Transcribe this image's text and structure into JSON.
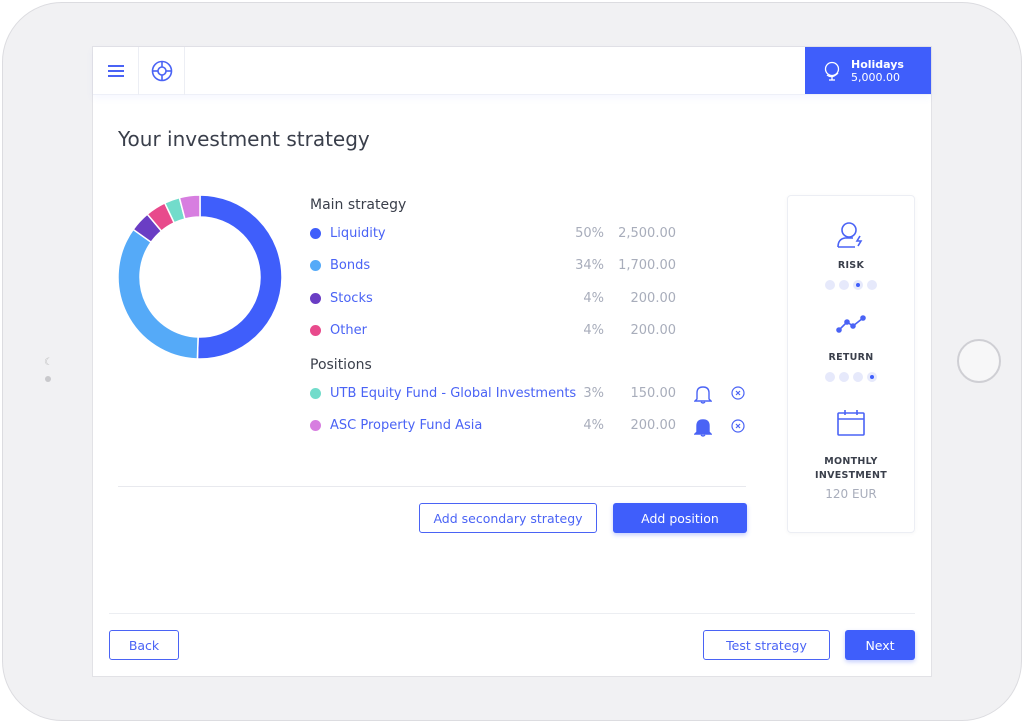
{
  "header": {
    "menu_icon": "hamburger-icon",
    "help_icon": "lifebuoy-icon",
    "goal": {
      "icon": "globe-icon",
      "name": "Holidays",
      "amount": "5,000.00"
    }
  },
  "page_title": "Your investment strategy",
  "main_strategy": {
    "title": "Main strategy",
    "items": [
      {
        "name": "Liquidity",
        "percent": "50%",
        "amount": "2,500.00",
        "color": "#3f5efb"
      },
      {
        "name": "Bonds",
        "percent": "34%",
        "amount": "1,700.00",
        "color": "#55aaf8"
      },
      {
        "name": "Stocks",
        "percent": "4%",
        "amount": "200.00",
        "color": "#6a3dc4"
      },
      {
        "name": "Other",
        "percent": "4%",
        "amount": "200.00",
        "color": "#e84a8c"
      }
    ]
  },
  "positions": {
    "title": "Positions",
    "items": [
      {
        "name": "UTB Equity Fund - Global Investments",
        "percent": "3%",
        "amount": "150.00",
        "color": "#72dccb",
        "alert": "off"
      },
      {
        "name": "ASC Property Fund Asia",
        "percent": "4%",
        "amount": "200.00",
        "color": "#d77ee0",
        "alert": "on"
      }
    ]
  },
  "chart_data": {
    "type": "pie",
    "donut": true,
    "categories": [
      "Liquidity",
      "Bonds",
      "Stocks",
      "Other",
      "UTB Equity Fund - Global Investments",
      "ASC Property Fund Asia"
    ],
    "values": [
      50,
      34,
      4,
      4,
      3,
      4
    ],
    "colors": [
      "#3f5efb",
      "#55aaf8",
      "#6a3dc4",
      "#e84a8c",
      "#72dccb",
      "#d77ee0"
    ]
  },
  "actions": {
    "add_secondary": "Add secondary strategy",
    "add_position": "Add position"
  },
  "summary": {
    "risk": {
      "label": "RISK",
      "level": 3,
      "max": 4
    },
    "return": {
      "label": "RETURN",
      "level": 4,
      "max": 4
    },
    "monthly": {
      "label1": "MONTHLY",
      "label2": "INVESTMENT",
      "value": "120 EUR"
    }
  },
  "footer": {
    "back": "Back",
    "test": "Test strategy",
    "next": "Next"
  }
}
